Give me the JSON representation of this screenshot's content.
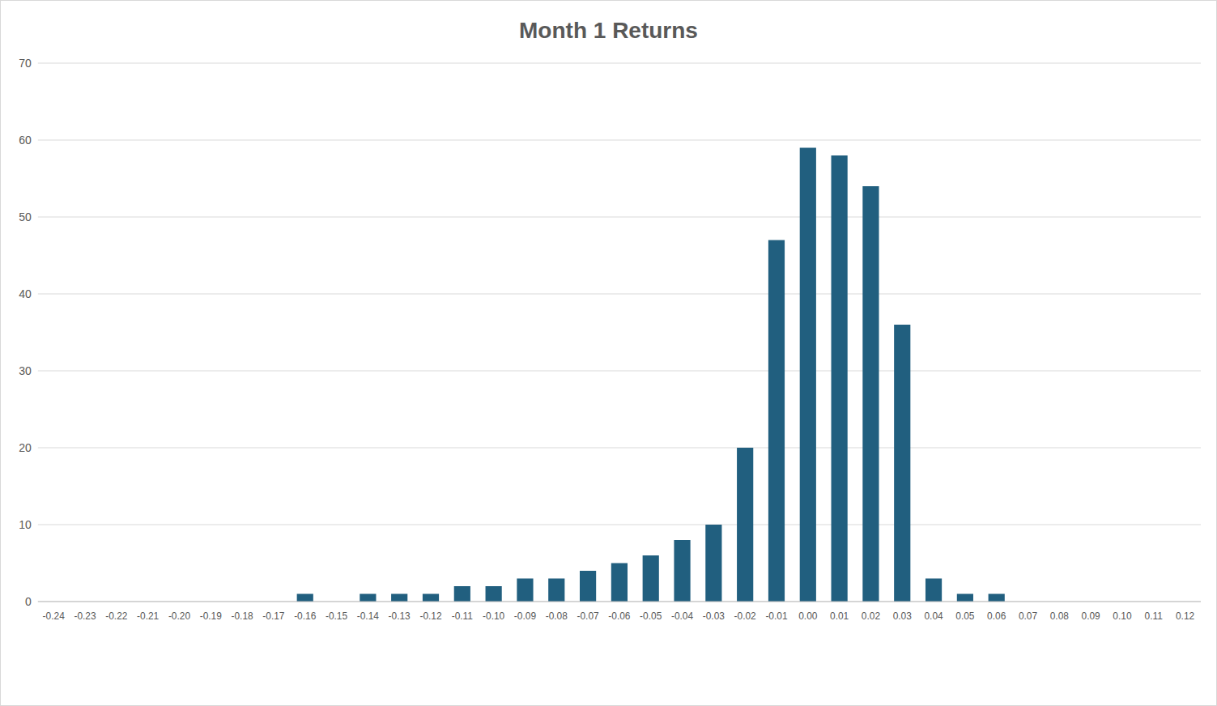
{
  "chart_data": {
    "type": "bar",
    "title": "Month 1 Returns",
    "categories": [
      "-0.24",
      "-0.23",
      "-0.22",
      "-0.21",
      "-0.20",
      "-0.19",
      "-0.18",
      "-0.17",
      "-0.16",
      "-0.15",
      "-0.14",
      "-0.13",
      "-0.12",
      "-0.11",
      "-0.10",
      "-0.09",
      "-0.08",
      "-0.07",
      "-0.06",
      "-0.05",
      "-0.04",
      "-0.03",
      "-0.02",
      "-0.01",
      "0.00",
      "0.01",
      "0.02",
      "0.03",
      "0.04",
      "0.05",
      "0.06",
      "0.07",
      "0.08",
      "0.09",
      "0.10",
      "0.11",
      "0.12"
    ],
    "values": [
      0,
      0,
      0,
      0,
      0,
      0,
      0,
      0,
      1,
      0,
      1,
      1,
      1,
      2,
      2,
      3,
      3,
      4,
      5,
      6,
      8,
      10,
      20,
      47,
      59,
      58,
      54,
      36,
      3,
      1,
      1,
      0,
      0,
      0,
      0,
      0,
      0
    ],
    "color": "#215f7f",
    "ylim": [
      0,
      70
    ],
    "yticks": [
      0,
      10,
      20,
      30,
      40,
      50,
      60,
      70
    ],
    "grid": true
  }
}
